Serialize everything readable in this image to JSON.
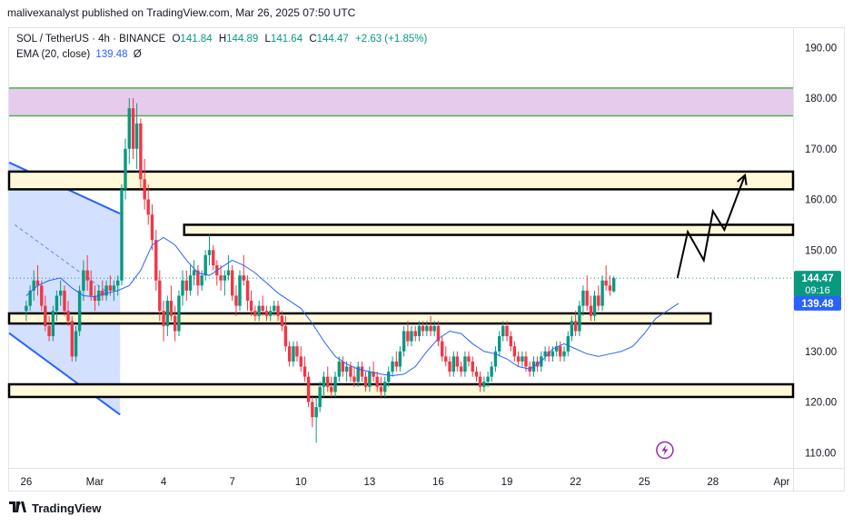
{
  "header": {
    "text": "malivexanalyst published on TradingView.com, Mar 26, 2025 07:50 UTC"
  },
  "legend": {
    "symbol": "SOL / TetherUS · 4h · BINANCE",
    "o_label": "O",
    "o_value": "141.84",
    "h_label": "H",
    "h_value": "144.89",
    "l_label": "L",
    "l_value": "141.64",
    "c_label": "C",
    "c_value": "144.47",
    "change": "+2.63 (+1.85%)",
    "ema_label": "EMA (20, close)",
    "ema_value": "139.48",
    "ema_suffix": "Ø"
  },
  "price_labels": {
    "last_price": "144.47",
    "countdown": "09:16",
    "ema_price": "139.48"
  },
  "footer": {
    "brand": "TradingView"
  },
  "colors": {
    "up": "#089981",
    "down": "#f23645",
    "ema": "#2962ff",
    "zone": "#fff9d9",
    "resistance": "#e1bee7"
  },
  "chart_data": {
    "type": "candlestick",
    "ylim": [
      107,
      194
    ],
    "y_ticks": [
      190,
      180,
      170,
      160,
      150,
      140,
      130,
      120,
      110
    ],
    "x_ticks": [
      {
        "label": "26",
        "t": 0
      },
      {
        "label": "Mar",
        "t": 3
      },
      {
        "label": "4",
        "t": 6
      },
      {
        "label": "7",
        "t": 9
      },
      {
        "label": "10",
        "t": 12
      },
      {
        "label": "13",
        "t": 15
      },
      {
        "label": "16",
        "t": 18
      },
      {
        "label": "19",
        "t": 21
      },
      {
        "label": "22",
        "t": 24
      },
      {
        "label": "25",
        "t": 27
      },
      {
        "label": "28",
        "t": 30
      },
      {
        "label": "Apr",
        "t": 33
      }
    ],
    "t_range": [
      -0.75,
      33.5
    ],
    "zones": [
      {
        "name": "resistance",
        "t0": -0.75,
        "t1": 33.5,
        "low": 176.5,
        "high": 182
      },
      {
        "name": "zone-165",
        "t0": -0.75,
        "t1": 33.5,
        "low": 162,
        "high": 165.5
      },
      {
        "name": "zone-155",
        "t0": 6.9,
        "t1": 33.5,
        "low": 153,
        "high": 155
      },
      {
        "name": "zone-137",
        "t0": -0.75,
        "t1": 29.9,
        "low": 135.5,
        "high": 137.5
      },
      {
        "name": "zone-122",
        "t0": -0.75,
        "t1": 33.5,
        "low": 121,
        "high": 123.5
      }
    ],
    "channel": {
      "upper": [
        [
          -0.75,
          167.3
        ],
        [
          4.1,
          157.2
        ]
      ],
      "lower": [
        [
          -0.75,
          133.6
        ],
        [
          4.1,
          117.5
        ]
      ],
      "right_edge_t": 4.1
    },
    "projection": [
      [
        28.45,
        144.5
      ],
      [
        28.9,
        153.6
      ],
      [
        29.6,
        148
      ],
      [
        30,
        157.7
      ],
      [
        30.5,
        154
      ],
      [
        31.4,
        164.8
      ]
    ],
    "ema": [
      [
        0,
        141
      ],
      [
        0.5,
        143
      ],
      [
        1,
        144
      ],
      [
        1.5,
        144.5
      ],
      [
        2,
        142.5
      ],
      [
        2.5,
        141
      ],
      [
        3,
        140.8
      ],
      [
        3.5,
        141.5
      ],
      [
        4,
        142
      ],
      [
        4.5,
        143
      ],
      [
        5,
        146
      ],
      [
        5.5,
        151
      ],
      [
        6,
        152.5
      ],
      [
        6.5,
        151
      ],
      [
        7,
        148
      ],
      [
        7.5,
        145.5
      ],
      [
        8,
        145
      ],
      [
        8.5,
        146.5
      ],
      [
        9,
        148
      ],
      [
        9.5,
        147
      ],
      [
        10,
        145.5
      ],
      [
        10.5,
        143.5
      ],
      [
        11,
        141.5
      ],
      [
        11.5,
        140
      ],
      [
        12,
        138.5
      ],
      [
        12.5,
        135.5
      ],
      [
        13,
        132
      ],
      [
        13.5,
        129
      ],
      [
        14,
        127.5
      ],
      [
        14.5,
        126.5
      ],
      [
        15,
        126
      ],
      [
        15.5,
        125.5
      ],
      [
        16,
        125.2
      ],
      [
        16.5,
        125.5
      ],
      [
        17,
        127
      ],
      [
        17.5,
        130
      ],
      [
        18,
        132.5
      ],
      [
        18.5,
        134
      ],
      [
        19,
        133.5
      ],
      [
        19.5,
        131.5
      ],
      [
        20,
        130
      ],
      [
        20.5,
        129.5
      ],
      [
        21,
        128.5
      ],
      [
        21.5,
        127
      ],
      [
        22,
        126.5
      ],
      [
        22.5,
        128
      ],
      [
        23,
        130.5
      ],
      [
        23.5,
        131.5
      ],
      [
        24,
        130.5
      ],
      [
        24.5,
        129.5
      ],
      [
        25,
        129
      ],
      [
        25.5,
        129.5
      ],
      [
        26,
        130
      ],
      [
        26.5,
        131
      ],
      [
        27,
        133.5
      ],
      [
        27.5,
        136.5
      ],
      [
        28,
        138
      ],
      [
        28.5,
        139.48
      ]
    ],
    "candles": [
      [
        0.0,
        138,
        140,
        136,
        139
      ],
      [
        0.17,
        139,
        143,
        138,
        142
      ],
      [
        0.33,
        142,
        146,
        140,
        144
      ],
      [
        0.5,
        144,
        147,
        141,
        143
      ],
      [
        0.67,
        143,
        144,
        138,
        139
      ],
      [
        0.83,
        139,
        141,
        134,
        135
      ],
      [
        1.0,
        135,
        137,
        132,
        133
      ],
      [
        1.17,
        133,
        139,
        132,
        138
      ],
      [
        1.33,
        138,
        142,
        136,
        141
      ],
      [
        1.5,
        141,
        144,
        139,
        142
      ],
      [
        1.67,
        142,
        143,
        137,
        138
      ],
      [
        1.83,
        138,
        140,
        135,
        136
      ],
      [
        2.0,
        136,
        137,
        128,
        129
      ],
      [
        2.17,
        129,
        135,
        128,
        134
      ],
      [
        2.33,
        134,
        143,
        133,
        142
      ],
      [
        2.5,
        142,
        148,
        140,
        146
      ],
      [
        2.67,
        146,
        149,
        142,
        144
      ],
      [
        2.83,
        144,
        146,
        140,
        141
      ],
      [
        3.0,
        141,
        143,
        138,
        140
      ],
      [
        3.17,
        140,
        143,
        139,
        142
      ],
      [
        3.33,
        142,
        144,
        140,
        141
      ],
      [
        3.5,
        141,
        144,
        140,
        143
      ],
      [
        3.67,
        143,
        145,
        141,
        142
      ],
      [
        3.83,
        142,
        144,
        140,
        143
      ],
      [
        4.0,
        143,
        145,
        141,
        144
      ],
      [
        4.17,
        144,
        163,
        143,
        162
      ],
      [
        4.33,
        162,
        172,
        160,
        170
      ],
      [
        4.5,
        170,
        180,
        167,
        178
      ],
      [
        4.67,
        178,
        180,
        168,
        170
      ],
      [
        4.83,
        170,
        179,
        166,
        175
      ],
      [
        5.0,
        175,
        176,
        162,
        164
      ],
      [
        5.17,
        164,
        168,
        158,
        160
      ],
      [
        5.33,
        160,
        163,
        155,
        157
      ],
      [
        5.5,
        157,
        159,
        150,
        152
      ],
      [
        5.67,
        152,
        154,
        142,
        144
      ],
      [
        5.83,
        144,
        146,
        136,
        138
      ],
      [
        6.0,
        138,
        140,
        132,
        135
      ],
      [
        6.17,
        135,
        141,
        133,
        140
      ],
      [
        6.33,
        140,
        143,
        136,
        137
      ],
      [
        6.5,
        137,
        139,
        132,
        134
      ],
      [
        6.67,
        134,
        142,
        133,
        141
      ],
      [
        6.83,
        141,
        146,
        139,
        144
      ],
      [
        7.0,
        144,
        146,
        140,
        142
      ],
      [
        7.17,
        142,
        147,
        141,
        145
      ],
      [
        7.33,
        145,
        148,
        143,
        146
      ],
      [
        7.5,
        146,
        147,
        141,
        143
      ],
      [
        7.67,
        143,
        146,
        142,
        145
      ],
      [
        7.83,
        145,
        150,
        144,
        149
      ],
      [
        8.0,
        149,
        153,
        147,
        150
      ],
      [
        8.17,
        150,
        151,
        146,
        147
      ],
      [
        8.33,
        147,
        148,
        143,
        145
      ],
      [
        8.5,
        145,
        147,
        142,
        144
      ],
      [
        8.67,
        144,
        146,
        141,
        145
      ],
      [
        8.83,
        145,
        149,
        144,
        146
      ],
      [
        9.0,
        146,
        147,
        140,
        141
      ],
      [
        9.17,
        141,
        143,
        137,
        139
      ],
      [
        9.33,
        139,
        146,
        138,
        145
      ],
      [
        9.5,
        145,
        149,
        143,
        144
      ],
      [
        9.67,
        144,
        145,
        138,
        140
      ],
      [
        9.83,
        140,
        142,
        137,
        138
      ],
      [
        10.0,
        138,
        139,
        136,
        137
      ],
      [
        10.17,
        137,
        140,
        136,
        139
      ],
      [
        10.33,
        139,
        141,
        137,
        138
      ],
      [
        10.5,
        138,
        139,
        136,
        137
      ],
      [
        10.67,
        137,
        139,
        136,
        138
      ],
      [
        10.83,
        138,
        140,
        137,
        139
      ],
      [
        11.0,
        139,
        140,
        136,
        137
      ],
      [
        11.17,
        137,
        138,
        134,
        135
      ],
      [
        11.33,
        135,
        137,
        130,
        131
      ],
      [
        11.5,
        131,
        132,
        127,
        128
      ],
      [
        11.67,
        128,
        132,
        127,
        131
      ],
      [
        11.83,
        131,
        132,
        128,
        129
      ],
      [
        12.0,
        129,
        131,
        126,
        127
      ],
      [
        12.17,
        127,
        129,
        124,
        125
      ],
      [
        12.33,
        125,
        126,
        119,
        120
      ],
      [
        12.5,
        120,
        121,
        115,
        117
      ],
      [
        12.67,
        117,
        121,
        112,
        119
      ],
      [
        12.83,
        119,
        124,
        118,
        123
      ],
      [
        13.0,
        123,
        126,
        121,
        125
      ],
      [
        13.17,
        125,
        127,
        122,
        123
      ],
      [
        13.33,
        123,
        125,
        121,
        122
      ],
      [
        13.5,
        122,
        126,
        121,
        125
      ],
      [
        13.67,
        125,
        129,
        124,
        128
      ],
      [
        13.83,
        128,
        129,
        125,
        126
      ],
      [
        14.0,
        126,
        128,
        124,
        127
      ],
      [
        14.17,
        127,
        128,
        124,
        125
      ],
      [
        14.33,
        125,
        127,
        123,
        124
      ],
      [
        14.5,
        124,
        128,
        123,
        127
      ],
      [
        14.67,
        127,
        128,
        124,
        125
      ],
      [
        14.83,
        125,
        126,
        122,
        123
      ],
      [
        15.0,
        123,
        127,
        122,
        126
      ],
      [
        15.17,
        126,
        128,
        124,
        125
      ],
      [
        15.33,
        125,
        126,
        122,
        123
      ],
      [
        15.5,
        123,
        125,
        121,
        122
      ],
      [
        15.67,
        122,
        125,
        121,
        124
      ],
      [
        15.83,
        124,
        127,
        123,
        126
      ],
      [
        16.0,
        126,
        129,
        125,
        128
      ],
      [
        16.17,
        128,
        130,
        126,
        127
      ],
      [
        16.33,
        127,
        131,
        126,
        130
      ],
      [
        16.5,
        130,
        135,
        129,
        134
      ],
      [
        16.67,
        134,
        136,
        131,
        132
      ],
      [
        16.83,
        132,
        135,
        131,
        134
      ],
      [
        17.0,
        134,
        135,
        132,
        133
      ],
      [
        17.17,
        133,
        136,
        132,
        135
      ],
      [
        17.33,
        135,
        136,
        133,
        134
      ],
      [
        17.5,
        134,
        136,
        133,
        135
      ],
      [
        17.67,
        135,
        137,
        133,
        134
      ],
      [
        17.83,
        134,
        136,
        133,
        135
      ],
      [
        18.0,
        135,
        136,
        131,
        132
      ],
      [
        18.17,
        132,
        133,
        128,
        129
      ],
      [
        18.33,
        129,
        131,
        127,
        128
      ],
      [
        18.5,
        128,
        129,
        125,
        126
      ],
      [
        18.67,
        126,
        130,
        125,
        129
      ],
      [
        18.83,
        129,
        130,
        126,
        127
      ],
      [
        19.0,
        127,
        128,
        125,
        126
      ],
      [
        19.17,
        126,
        130,
        125,
        129
      ],
      [
        19.33,
        129,
        130,
        127,
        128
      ],
      [
        19.5,
        128,
        129,
        125,
        126
      ],
      [
        19.67,
        126,
        127,
        124,
        125
      ],
      [
        19.83,
        125,
        126,
        122,
        123
      ],
      [
        20.0,
        123,
        125,
        122,
        124
      ],
      [
        20.17,
        124,
        126,
        123,
        125
      ],
      [
        20.33,
        125,
        128,
        124,
        127
      ],
      [
        20.5,
        127,
        131,
        126,
        130
      ],
      [
        20.67,
        130,
        134,
        129,
        133
      ],
      [
        20.83,
        133,
        136,
        132,
        135
      ],
      [
        21.0,
        135,
        136,
        132,
        133
      ],
      [
        21.17,
        133,
        134,
        130,
        131
      ],
      [
        21.33,
        131,
        132,
        128,
        129
      ],
      [
        21.5,
        129,
        130,
        127,
        128
      ],
      [
        21.67,
        128,
        130,
        127,
        129
      ],
      [
        21.83,
        129,
        130,
        126,
        127
      ],
      [
        22.0,
        127,
        128,
        125,
        126
      ],
      [
        22.17,
        126,
        129,
        125,
        128
      ],
      [
        22.33,
        128,
        129,
        126,
        127
      ],
      [
        22.5,
        127,
        130,
        126,
        129
      ],
      [
        22.67,
        129,
        131,
        128,
        130
      ],
      [
        22.83,
        130,
        131,
        128,
        129
      ],
      [
        23.0,
        129,
        131,
        128,
        130
      ],
      [
        23.17,
        130,
        132,
        129,
        131
      ],
      [
        23.33,
        131,
        132,
        128,
        129
      ],
      [
        23.5,
        129,
        131,
        128,
        130
      ],
      [
        23.67,
        130,
        134,
        129,
        133
      ],
      [
        23.83,
        133,
        137,
        132,
        136
      ],
      [
        24.0,
        136,
        138,
        133,
        134
      ],
      [
        24.17,
        134,
        140,
        133,
        139
      ],
      [
        24.33,
        139,
        143,
        137,
        142
      ],
      [
        24.5,
        142,
        145,
        138,
        139
      ],
      [
        24.67,
        139,
        141,
        136,
        137
      ],
      [
        24.83,
        137,
        142,
        136,
        141
      ],
      [
        25.0,
        141,
        143,
        138,
        139
      ],
      [
        25.17,
        139,
        145,
        138,
        144
      ],
      [
        25.33,
        144,
        147,
        142,
        143
      ],
      [
        25.5,
        143,
        145,
        141,
        142
      ],
      [
        25.67,
        141.84,
        144.89,
        141.64,
        144.47
      ]
    ]
  }
}
